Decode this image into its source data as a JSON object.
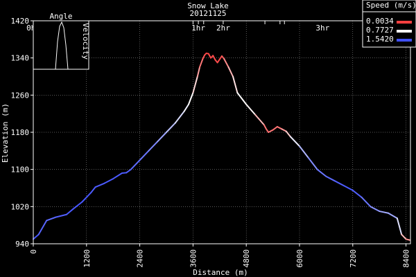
{
  "chart_data": {
    "type": "line",
    "title": "Snow Lake",
    "subtitle": "20121125",
    "xlabel": "Distance (m)",
    "ylabel": "Elevation (m)",
    "xlim": [
      0,
      8500
    ],
    "ylim": [
      940,
      1420
    ],
    "x_ticks": [
      "0",
      "1200",
      "2400",
      "3600",
      "4800",
      "6000",
      "7200",
      "8400"
    ],
    "y_ticks": [
      "940",
      "1020",
      "1100",
      "1180",
      "1260",
      "1340",
      "1420"
    ],
    "time_marks": [
      {
        "label": "0hr",
        "x": 0
      },
      {
        "label": "1hr",
        "x": 3720
      },
      {
        "label": "2hr",
        "x": 4280
      },
      {
        "label": "3hr",
        "x": 6520
      }
    ],
    "time_tick_x": [
      200,
      500,
      700,
      3600,
      3720,
      3840,
      4280,
      5220,
      5560,
      5660
    ],
    "legend": {
      "title": "Speed (m/s)",
      "placement": "top-right",
      "entries": [
        {
          "label": "0.0034",
          "color": "#ff4040"
        },
        {
          "label": "0.7727",
          "color": "#ffffff"
        },
        {
          "label": "1.5420",
          "color": "#4050ff"
        }
      ]
    },
    "inset": {
      "title": "Angle",
      "side_label": "Velocity"
    },
    "series": [
      {
        "values": [
          [
            0,
            950
          ],
          [
            120,
            960
          ],
          [
            300,
            990
          ],
          [
            500,
            997
          ],
          [
            750,
            1003
          ],
          [
            900,
            1015
          ],
          [
            1100,
            1030
          ],
          [
            1300,
            1050
          ],
          [
            1400,
            1062
          ],
          [
            1600,
            1070
          ],
          [
            1800,
            1080
          ],
          [
            2000,
            1092
          ],
          [
            2100,
            1093
          ],
          [
            2200,
            1100
          ],
          [
            2400,
            1120
          ],
          [
            2600,
            1140
          ],
          [
            2800,
            1160
          ],
          [
            3000,
            1180
          ],
          [
            3200,
            1200
          ],
          [
            3400,
            1225
          ],
          [
            3500,
            1240
          ],
          [
            3600,
            1265
          ],
          [
            3700,
            1300
          ],
          [
            3750,
            1320
          ],
          [
            3820,
            1338
          ],
          [
            3860,
            1346
          ],
          [
            3900,
            1350
          ],
          [
            3950,
            1349
          ],
          [
            4000,
            1340
          ],
          [
            4050,
            1345
          ],
          [
            4100,
            1336
          ],
          [
            4150,
            1330
          ],
          [
            4200,
            1337
          ],
          [
            4250,
            1344
          ],
          [
            4300,
            1338
          ],
          [
            4400,
            1320
          ],
          [
            4500,
            1300
          ],
          [
            4600,
            1265
          ],
          [
            4800,
            1240
          ],
          [
            5000,
            1218
          ],
          [
            5200,
            1196
          ],
          [
            5250,
            1187
          ],
          [
            5300,
            1180
          ],
          [
            5400,
            1185
          ],
          [
            5500,
            1192
          ],
          [
            5600,
            1187
          ],
          [
            5700,
            1182
          ],
          [
            5800,
            1170
          ],
          [
            6000,
            1150
          ],
          [
            6200,
            1125
          ],
          [
            6400,
            1100
          ],
          [
            6600,
            1085
          ],
          [
            6800,
            1075
          ],
          [
            7000,
            1065
          ],
          [
            7200,
            1055
          ],
          [
            7400,
            1040
          ],
          [
            7600,
            1020
          ],
          [
            7800,
            1010
          ],
          [
            8000,
            1006
          ],
          [
            8200,
            995
          ],
          [
            8300,
            960
          ],
          [
            8400,
            950
          ],
          [
            8480,
            948
          ]
        ],
        "speed": [
          1.54,
          1.5,
          1.4,
          1.45,
          1.5,
          1.5,
          1.52,
          1.5,
          1.48,
          1.5,
          1.5,
          1.5,
          1.5,
          1.45,
          1.4,
          1.35,
          1.25,
          1.1,
          1.0,
          0.85,
          0.8,
          0.75,
          0.5,
          0.3,
          0.15,
          0.05,
          0.02,
          0.03,
          0.05,
          0.04,
          0.06,
          0.05,
          0.04,
          0.05,
          0.2,
          0.4,
          0.55,
          0.75,
          0.78,
          0.7,
          0.3,
          0.15,
          0.2,
          0.25,
          0.15,
          0.3,
          0.45,
          0.7,
          1.0,
          1.2,
          1.35,
          1.4,
          1.45,
          1.5,
          1.5,
          1.45,
          1.3,
          1.2,
          1.1,
          1.2,
          0.6,
          0.4,
          0.3
        ]
      }
    ]
  }
}
